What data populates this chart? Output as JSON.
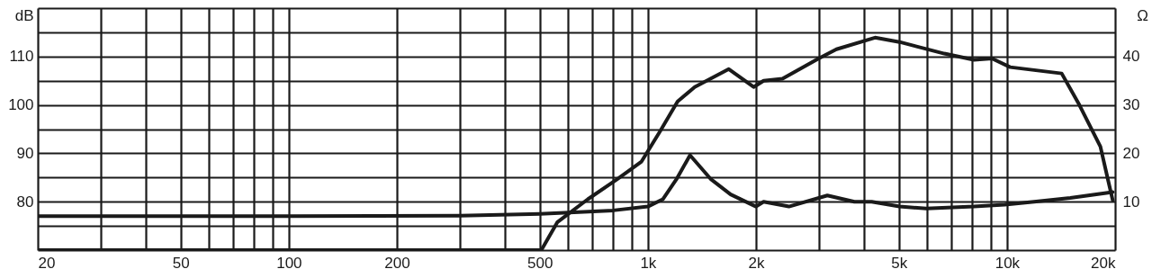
{
  "chart_data": {
    "type": "line",
    "ylabel": "dB",
    "y2label": "Ω",
    "log": "x",
    "grid": true,
    "xlim": [
      20,
      20000
    ],
    "xticks": [
      20,
      {
        "value": 30,
        "label": null
      },
      {
        "value": 40,
        "label": null
      },
      50,
      {
        "value": 60,
        "label": null
      },
      {
        "value": 70,
        "label": null
      },
      {
        "value": 80,
        "label": null
      },
      {
        "value": 90,
        "label": null
      },
      100,
      200,
      {
        "value": 300,
        "label": null
      },
      {
        "value": 400,
        "label": null
      },
      500,
      {
        "value": 600,
        "label": null
      },
      {
        "value": 700,
        "label": null
      },
      {
        "value": 800,
        "label": null
      },
      {
        "value": 900,
        "label": null
      },
      {
        "value": 1000,
        "label": "1k"
      },
      {
        "value": 2000,
        "label": "2k"
      },
      {
        "value": 3000,
        "label": null
      },
      {
        "value": 4000,
        "label": null
      },
      {
        "value": 5000,
        "label": "5k"
      },
      {
        "value": 6000,
        "label": null
      },
      {
        "value": 7000,
        "label": null
      },
      {
        "value": 8000,
        "label": null
      },
      {
        "value": 9000,
        "label": null
      },
      {
        "value": 10000,
        "label": "10k"
      },
      {
        "value": 20000,
        "label": "20k"
      }
    ],
    "ylim": [
      70,
      120
    ],
    "yticks": [
      {
        "value": 70,
        "label": null
      },
      {
        "value": 75,
        "label": null
      },
      80,
      {
        "value": 85,
        "label": null
      },
      90,
      {
        "value": 95,
        "label": null
      },
      100,
      {
        "value": 105,
        "label": null
      },
      110,
      {
        "value": 115,
        "label": null
      },
      {
        "value": 120,
        "label": null
      }
    ],
    "y2lim": [
      0,
      50
    ],
    "y2ticks": [
      10,
      20,
      30,
      40
    ],
    "series": [
      {
        "color": "#1a1a1a",
        "x": [
          20,
          100,
          300,
          440,
          505,
          560,
          680,
          820,
          960,
          1080,
          1210,
          1350,
          1680,
          1970,
          2100,
          2370,
          2990,
          3350,
          4290,
          5020,
          6690,
          8090,
          9080,
          10200,
          14200,
          15900,
          18200,
          19100,
          19700
        ],
        "values": [
          70,
          70,
          70,
          70,
          70,
          75.8,
          80.5,
          84.6,
          88.3,
          94.5,
          100.7,
          103.7,
          107.4,
          103.7,
          105,
          105.4,
          109.6,
          111.5,
          113.9,
          113,
          110.6,
          109.3,
          109.6,
          107.8,
          106.5,
          100,
          91.4,
          84.6,
          80.3
        ]
      },
      {
        "color": "#1a1a1a",
        "axis": "y2",
        "x": [
          20,
          100,
          300,
          500,
          800,
          1000,
          1100,
          1200,
          1310,
          1500,
          1700,
          2000,
          2100,
          2470,
          3160,
          3760,
          4200,
          5020,
          5960,
          8090,
          9850,
          11900,
          15000,
          19700
        ],
        "values": [
          7,
          7,
          7.1,
          7.5,
          8.2,
          9,
          10.5,
          14.6,
          19.6,
          14.6,
          11.5,
          9,
          10,
          9,
          11.3,
          10,
          10,
          9,
          8.6,
          9,
          9.4,
          10,
          10.8,
          12
        ]
      }
    ]
  }
}
